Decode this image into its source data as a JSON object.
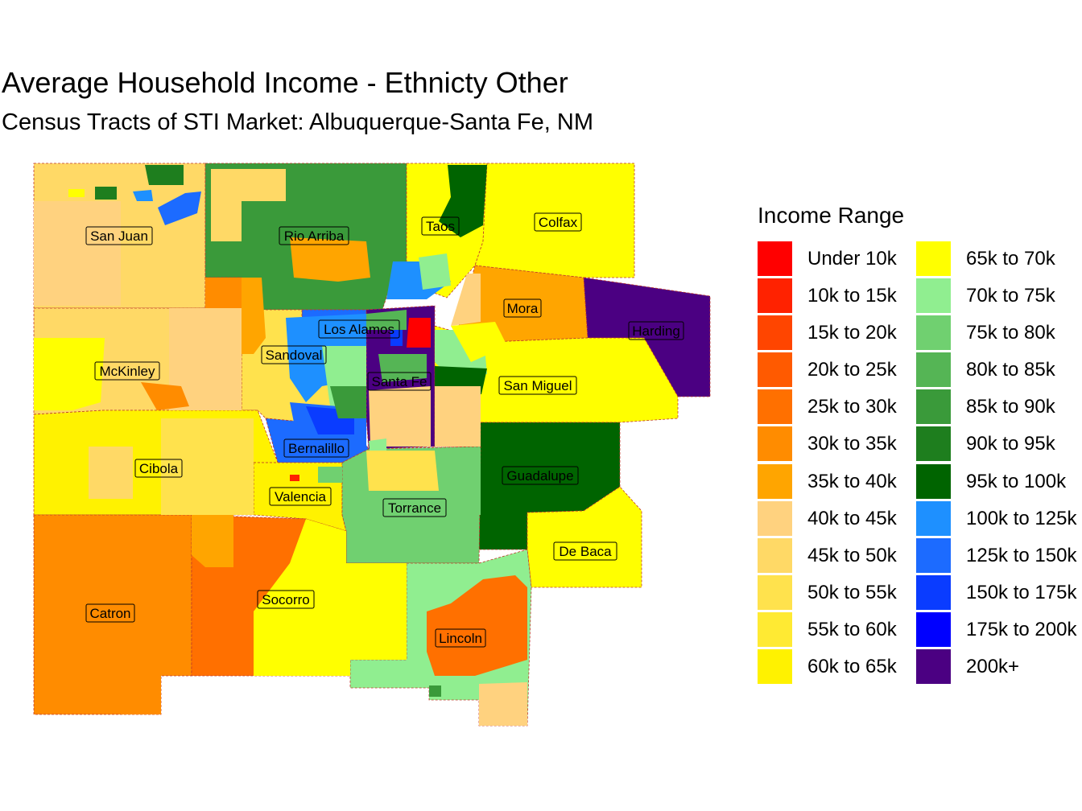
{
  "title": "Average Household Income - Ethnicty Other",
  "subtitle": "Census Tracts of STI Market: Albuquerque-Santa Fe, NM",
  "legend": {
    "title": "Income Range",
    "col1": [
      {
        "label": "Under 10k",
        "color": "#FF0000"
      },
      {
        "label": "10k to 15k",
        "color": "#FF2200"
      },
      {
        "label": "15k to 20k",
        "color": "#FF4500"
      },
      {
        "label": "20k to 25k",
        "color": "#FF5A00"
      },
      {
        "label": "25k to 30k",
        "color": "#FF7000"
      },
      {
        "label": "30k to 35k",
        "color": "#FF8C00"
      },
      {
        "label": "35k to 40k",
        "color": "#FFA500"
      },
      {
        "label": "40k to 45k",
        "color": "#FFD27F"
      },
      {
        "label": "45k to 50k",
        "color": "#FFD966"
      },
      {
        "label": "50k to 55k",
        "color": "#FFE24D"
      },
      {
        "label": "55k to 60k",
        "color": "#FFEA33"
      },
      {
        "label": "60k to 65k",
        "color": "#FFF200"
      }
    ],
    "col2": [
      {
        "label": "65k to 70k",
        "color": "#FFFF00"
      },
      {
        "label": "70k to 75k",
        "color": "#90EE90"
      },
      {
        "label": "75k to 80k",
        "color": "#70D070"
      },
      {
        "label": "80k to 85k",
        "color": "#55B555"
      },
      {
        "label": "85k to 90k",
        "color": "#3A9A3A"
      },
      {
        "label": "90k to 95k",
        "color": "#1E7E1E"
      },
      {
        "label": "95k to 100k",
        "color": "#006400"
      },
      {
        "label": "100k to 125k",
        "color": "#1E90FF"
      },
      {
        "label": "125k to 150k",
        "color": "#1C6BFF"
      },
      {
        "label": "150k to 175k",
        "color": "#0A3CFF"
      },
      {
        "label": "175k to 200k",
        "color": "#0000FF"
      },
      {
        "label": "200k+",
        "color": "#4B0082"
      }
    ]
  },
  "counties": [
    {
      "name": "San Juan",
      "bracket": "45k to 50k",
      "color": "#FFD966"
    },
    {
      "name": "Rio Arriba",
      "bracket": "85k to 90k",
      "color": "#3A9A3A"
    },
    {
      "name": "Taos",
      "bracket": "65k to 70k",
      "color": "#FFFF00"
    },
    {
      "name": "Colfax",
      "bracket": "65k to 70k",
      "color": "#FFFF00"
    },
    {
      "name": "Mora",
      "bracket": "35k to 40k",
      "color": "#FFA500"
    },
    {
      "name": "Harding",
      "bracket": "200k+",
      "color": "#4B0082"
    },
    {
      "name": "Los Alamos",
      "bracket": "125k to 150k",
      "color": "#1C6BFF"
    },
    {
      "name": "Sandoval",
      "bracket": "50k to 55k",
      "color": "#FFE24D"
    },
    {
      "name": "McKinley",
      "bracket": "45k to 50k",
      "color": "#FFD966"
    },
    {
      "name": "Santa Fe",
      "bracket": "200k+",
      "color": "#4B0082"
    },
    {
      "name": "San Miguel",
      "bracket": "65k to 70k",
      "color": "#FFFF00"
    },
    {
      "name": "Bernalillo",
      "bracket": "125k to 150k",
      "color": "#1C6BFF"
    },
    {
      "name": "Cibola",
      "bracket": "60k to 65k",
      "color": "#FFF200"
    },
    {
      "name": "Guadalupe",
      "bracket": "95k to 100k",
      "color": "#006400"
    },
    {
      "name": "Valencia",
      "bracket": "60k to 65k",
      "color": "#FFF200"
    },
    {
      "name": "Torrance",
      "bracket": "75k to 80k",
      "color": "#70D070"
    },
    {
      "name": "De Baca",
      "bracket": "65k to 70k",
      "color": "#FFFF00"
    },
    {
      "name": "Catron",
      "bracket": "30k to 35k",
      "color": "#FF8C00"
    },
    {
      "name": "Socorro",
      "bracket": "25k to 30k",
      "color": "#FF7000"
    },
    {
      "name": "Lincoln",
      "bracket": "70k to 75k",
      "color": "#90EE90"
    }
  ]
}
